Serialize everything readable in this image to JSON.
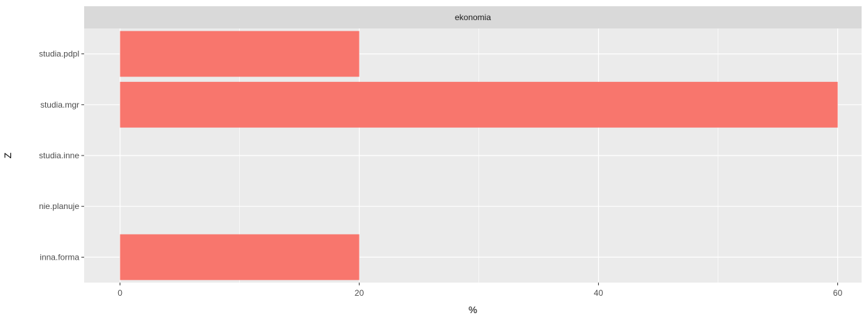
{
  "chart_data": {
    "type": "bar",
    "orientation": "horizontal",
    "facet_label": "ekonomia",
    "categories": [
      "studia.pdpl",
      "studia.mgr",
      "studia.inne",
      "nie.planuje",
      "inna.forma"
    ],
    "values": [
      20,
      60,
      0,
      0,
      20
    ],
    "xlabel": "%",
    "ylabel": "Z",
    "xlim": [
      -3,
      62
    ],
    "x_ticks": [
      0,
      20,
      40,
      60
    ],
    "grid": true,
    "colors": {
      "bar": "#F8766D",
      "panel_bg": "#EBEBEB",
      "strip_bg": "#D9D9D9",
      "grid": "#FFFFFF"
    }
  }
}
